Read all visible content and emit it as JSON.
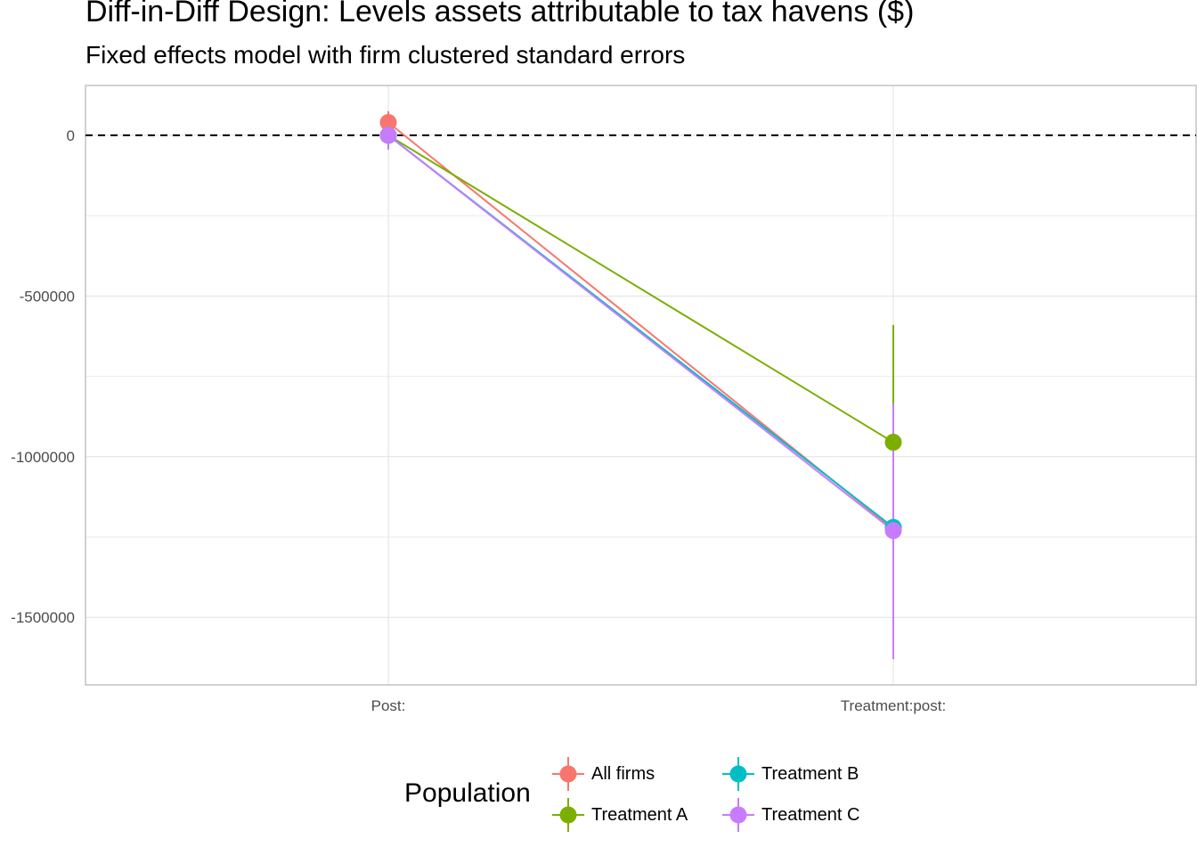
{
  "chart_data": {
    "type": "scatter",
    "title": "Diff-in-Diff Design: Levels assets attributable to tax havens  ($)",
    "subtitle": "Fixed effects model with firm clustered standard errors",
    "xlabel": "",
    "ylabel": "",
    "categories": [
      "Post:",
      "Treatment:post:"
    ],
    "ylim": [
      -1710000,
      155000
    ],
    "y_ticks": [
      0,
      -500000,
      -1000000,
      -1500000
    ],
    "y_tick_labels": [
      "0",
      "-500000",
      "-1000000",
      "-1500000"
    ],
    "reference_line": 0,
    "grid": true,
    "legend": {
      "title": "Population",
      "position": "bottom"
    },
    "series": [
      {
        "name": "All firms",
        "color": "#F8766D",
        "values": [
          40000,
          -1225000
        ],
        "lower": [
          -10000,
          -1225000
        ],
        "upper": [
          75000,
          -1225000
        ]
      },
      {
        "name": "Treatment A",
        "color": "#7CAE00",
        "values": [
          0,
          -955000
        ],
        "lower": [
          0,
          -1310000
        ],
        "upper": [
          0,
          -590000
        ]
      },
      {
        "name": "Treatment B",
        "color": "#00BFC4",
        "values": [
          0,
          -1220000
        ],
        "lower": [
          0,
          -1220000
        ],
        "upper": [
          0,
          -1220000
        ]
      },
      {
        "name": "Treatment C",
        "color": "#C77CFF",
        "values": [
          0,
          -1230000
        ],
        "lower": [
          -45000,
          -1630000
        ],
        "upper": [
          45000,
          -835000
        ]
      }
    ]
  }
}
